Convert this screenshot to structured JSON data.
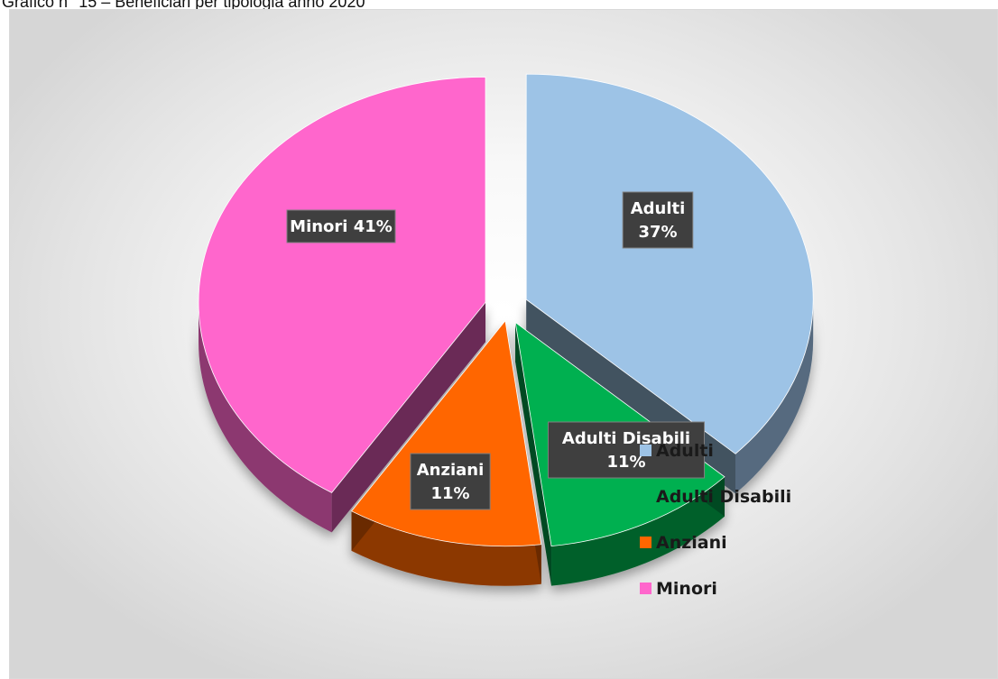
{
  "caption": "Grafico n° 15 – Beneficiari per tipologia anno 2020",
  "chart_data": {
    "type": "pie",
    "categories": [
      "Adulti",
      "Adulti Disabili",
      "Anziani",
      "Minori"
    ],
    "values": [
      37,
      11,
      11,
      41
    ],
    "unit": "%",
    "colors": [
      "#9dc3e6",
      "#00b050",
      "#ff6600",
      "#ff66cc"
    ],
    "data_labels": [
      "Adulti 37%",
      "Adulti Disabili 11%",
      "Anziani 11%",
      "Minori 41%"
    ],
    "legend_position": "right",
    "legend": [
      {
        "label": "Adulti",
        "color": "#9dc3e6"
      },
      {
        "label": "Adulti Disabili",
        "color": "#00b050"
      },
      {
        "label": "Anziani",
        "color": "#ff6600"
      },
      {
        "label": "Minori",
        "color": "#ff66cc"
      }
    ]
  }
}
